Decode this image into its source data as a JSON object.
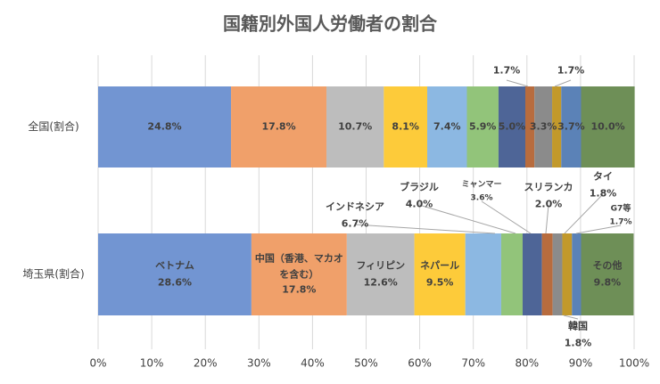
{
  "chart_data": {
    "type": "bar",
    "orientation": "horizontal",
    "stacked": true,
    "title": "国籍別外国人労働者の割合",
    "categories": [
      "全国(割合)",
      "埼玉県(割合)"
    ],
    "series": [
      {
        "name": "ベトナム",
        "color": "#7295d2",
        "values": [
          24.8,
          28.6
        ],
        "value_labels": [
          "24.8%",
          "28.6%"
        ]
      },
      {
        "name": "中国（香港、マカオを含む）",
        "color": "#f0a06a",
        "values": [
          17.8,
          17.8
        ],
        "value_labels": [
          "17.8%",
          "17.8%"
        ]
      },
      {
        "name": "フィリピン",
        "color": "#bdbdbd",
        "values": [
          10.7,
          12.6
        ],
        "value_labels": [
          "10.7%",
          "12.6%"
        ]
      },
      {
        "name": "ネパール",
        "color": "#fdcb3a",
        "values": [
          8.1,
          9.5
        ],
        "value_labels": [
          "8.1%",
          "9.5%"
        ]
      },
      {
        "name": "インドネシア",
        "color": "#8cb8e2",
        "values": [
          7.4,
          6.7
        ],
        "value_labels": [
          "7.4%",
          "6.7%"
        ]
      },
      {
        "name": "ブラジル",
        "color": "#92c47a",
        "values": [
          5.9,
          4.0
        ],
        "value_labels": [
          "5.9%",
          "4.0%"
        ]
      },
      {
        "name": "ミャンマー",
        "color": "#4e6597",
        "values": [
          5.0,
          3.6
        ],
        "value_labels": [
          "5.0%",
          "3.6%"
        ]
      },
      {
        "name": "スリランカ",
        "color": "#b86c3e",
        "values": [
          1.7,
          2.0
        ],
        "value_labels": [
          "1.7%",
          "2.0%"
        ]
      },
      {
        "name": "タイ",
        "color": "#8b8b8b",
        "values": [
          3.3,
          1.8
        ],
        "value_labels": [
          "3.3%",
          "1.8%"
        ]
      },
      {
        "name": "韓国",
        "color": "#c2992b",
        "values": [
          1.7,
          1.8
        ],
        "value_labels": [
          "1.7%",
          "1.8%"
        ]
      },
      {
        "name": "G7等",
        "color": "#5b82b7",
        "values": [
          3.7,
          1.7
        ],
        "value_labels": [
          "3.7%",
          "1.7%"
        ]
      },
      {
        "name": "その他",
        "color": "#6e8f57",
        "values": [
          10.0,
          9.8
        ],
        "value_labels": [
          "10.0%",
          "9.8%"
        ]
      }
    ],
    "xlim": [
      0,
      100
    ],
    "xticks": [
      {
        "value": 0,
        "label": "0%"
      },
      {
        "value": 10,
        "label": "10%"
      },
      {
        "value": 20,
        "label": "20%"
      },
      {
        "value": 30,
        "label": "30%"
      },
      {
        "value": 40,
        "label": "40%"
      },
      {
        "value": 50,
        "label": "50%"
      },
      {
        "value": 60,
        "label": "60%"
      },
      {
        "value": 70,
        "label": "70%"
      },
      {
        "value": 80,
        "label": "80%"
      },
      {
        "value": 90,
        "label": "90%"
      },
      {
        "value": 100,
        "label": "100%"
      }
    ],
    "grid": true
  }
}
